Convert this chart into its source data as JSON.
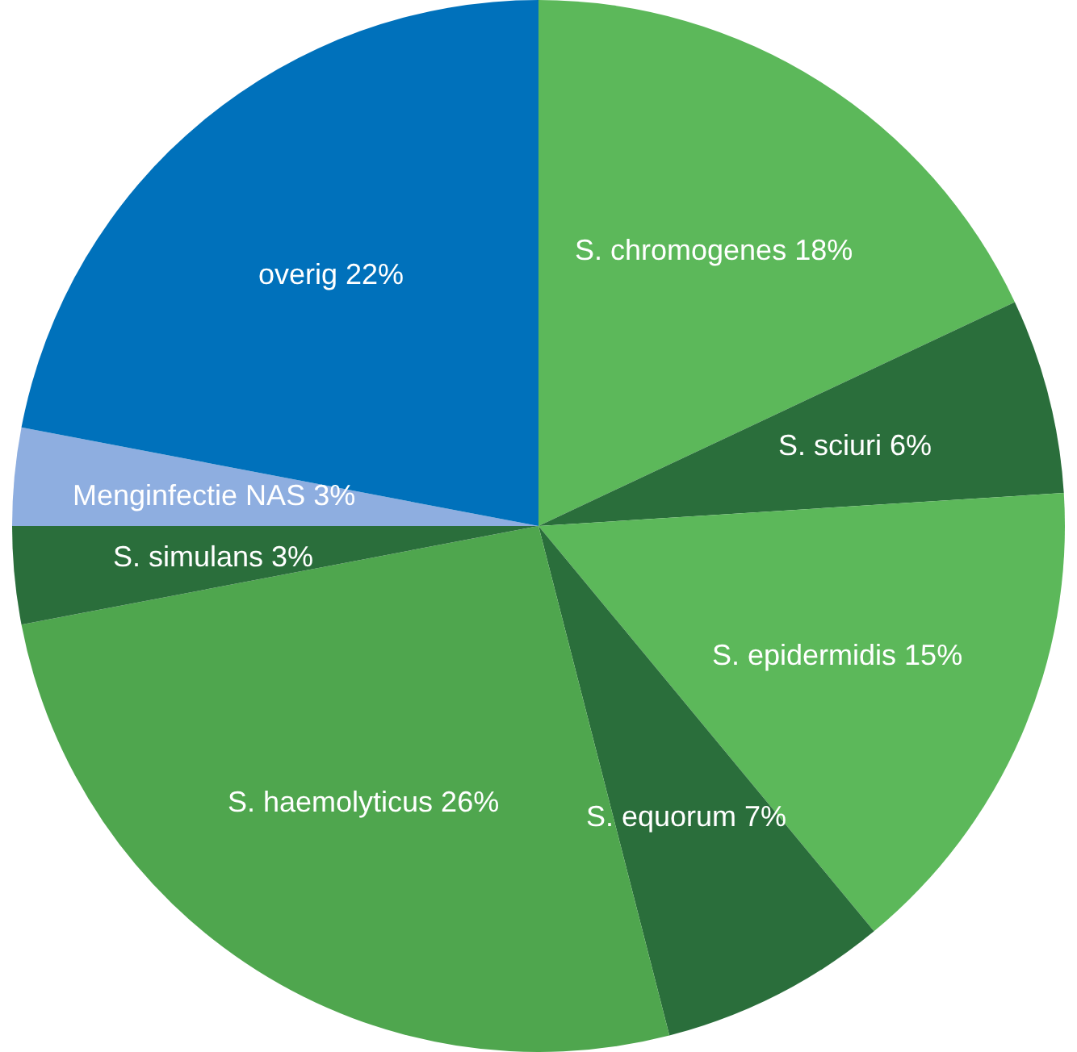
{
  "chart_data": {
    "type": "pie",
    "categories": [
      "S. chromogenes",
      "S. sciuri",
      "S. epidermidis",
      "S. equorum",
      "S. haemolyticus",
      "S. simulans",
      "Menginfectie NAS",
      "overig"
    ],
    "values": [
      18,
      6,
      15,
      7,
      26,
      3,
      3,
      22
    ],
    "value_labels": [
      "18%",
      "6%",
      "15%",
      "7%",
      "26%",
      "3%",
      "3%",
      "22%"
    ],
    "colors": [
      "#5cb85a",
      "#2a6e3b",
      "#5cb85a",
      "#2a6e3b",
      "#4fa64e",
      "#2a6e3b",
      "#8eaee0",
      "#0071bb"
    ],
    "legend": false
  }
}
